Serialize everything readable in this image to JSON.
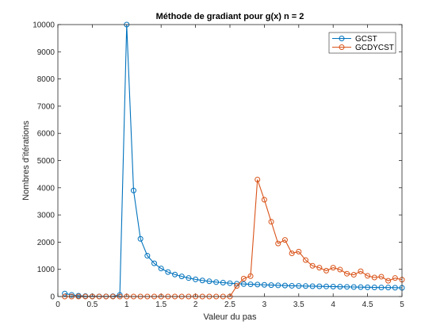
{
  "chart_data": {
    "type": "line",
    "title": "Méthode de gradiant pour g(x) n = 2",
    "xlabel": "Valeur du pas",
    "ylabel": "Nombres d'itérations",
    "xlim": [
      0,
      5
    ],
    "ylim": [
      0,
      10000
    ],
    "x_ticks": [
      "0",
      "0.5",
      "1",
      "1.5",
      "2",
      "2.5",
      "3",
      "3.5",
      "4",
      "4.5",
      "5"
    ],
    "y_ticks": [
      "0",
      "1000",
      "2000",
      "3000",
      "4000",
      "5000",
      "6000",
      "7000",
      "8000",
      "9000",
      "10000"
    ],
    "grid": false,
    "legend_position": "top-right",
    "marker": "circle",
    "x": [
      0.1,
      0.2,
      0.3,
      0.4,
      0.5,
      0.6,
      0.7,
      0.8,
      0.9,
      1.0,
      1.1,
      1.2,
      1.3,
      1.4,
      1.5,
      1.6,
      1.7,
      1.8,
      1.9,
      2.0,
      2.1,
      2.2,
      2.3,
      2.4,
      2.5,
      2.6,
      2.7,
      2.8,
      2.9,
      3.0,
      3.1,
      3.2,
      3.3,
      3.4,
      3.5,
      3.6,
      3.7,
      3.8,
      3.9,
      4.0,
      4.1,
      4.2,
      4.3,
      4.4,
      4.5,
      4.6,
      4.7,
      4.8,
      4.9,
      5.0
    ],
    "series": [
      {
        "name": "GCST",
        "color": "#0072BD",
        "values": [
          110,
          60,
          30,
          15,
          8,
          5,
          5,
          10,
          60,
          10000,
          3900,
          2120,
          1500,
          1220,
          1030,
          900,
          810,
          740,
          680,
          630,
          590,
          560,
          530,
          510,
          490,
          470,
          460,
          450,
          440,
          430,
          420,
          410,
          405,
          395,
          390,
          385,
          380,
          375,
          370,
          365,
          360,
          355,
          350,
          345,
          340,
          335,
          330,
          330,
          325,
          320
        ]
      },
      {
        "name": "GCDYCST",
        "color": "#D95319",
        "values": [
          0,
          0,
          0,
          0,
          0,
          0,
          0,
          0,
          0,
          0,
          0,
          0,
          0,
          0,
          0,
          0,
          0,
          0,
          0,
          0,
          0,
          0,
          0,
          0,
          0,
          390,
          660,
          750,
          4300,
          3560,
          2750,
          1950,
          2080,
          1590,
          1650,
          1340,
          1130,
          1060,
          950,
          1060,
          990,
          840,
          800,
          930,
          760,
          700,
          730,
          580,
          680,
          620
        ]
      }
    ]
  }
}
